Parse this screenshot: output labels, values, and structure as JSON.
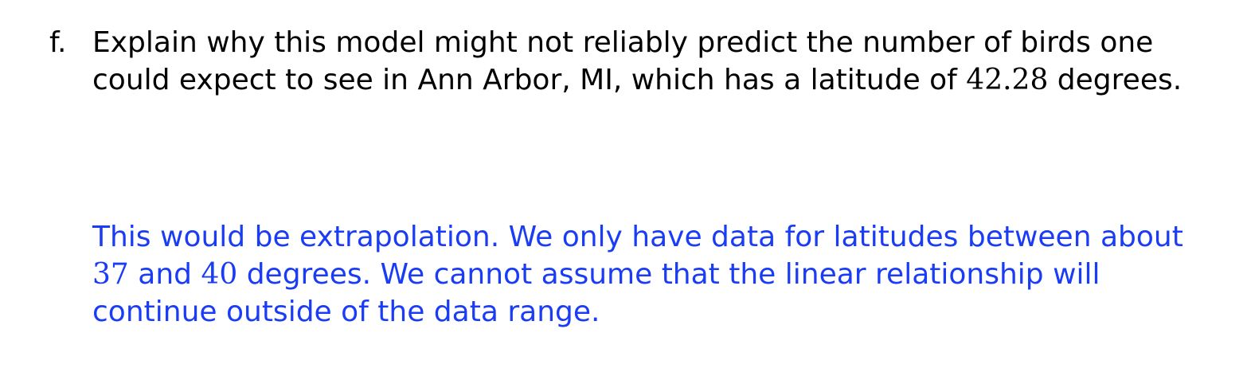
{
  "question": {
    "marker": "f.",
    "text_before": "Explain why this model might not reliably predict the number of birds one could expect to see in Ann Arbor, MI, which has a latitude of ",
    "latitude": "42.28",
    "text_after": " degrees."
  },
  "answer": {
    "part1": "This would be extrapolation. We only have data for latitudes between about ",
    "low": "37",
    "part2": " and ",
    "high": "40",
    "part3": " degrees. We cannot assume that the linear relationship will continue outside of the data range."
  },
  "colors": {
    "question_text": "#000000",
    "answer_text": "#1a3cf5"
  }
}
